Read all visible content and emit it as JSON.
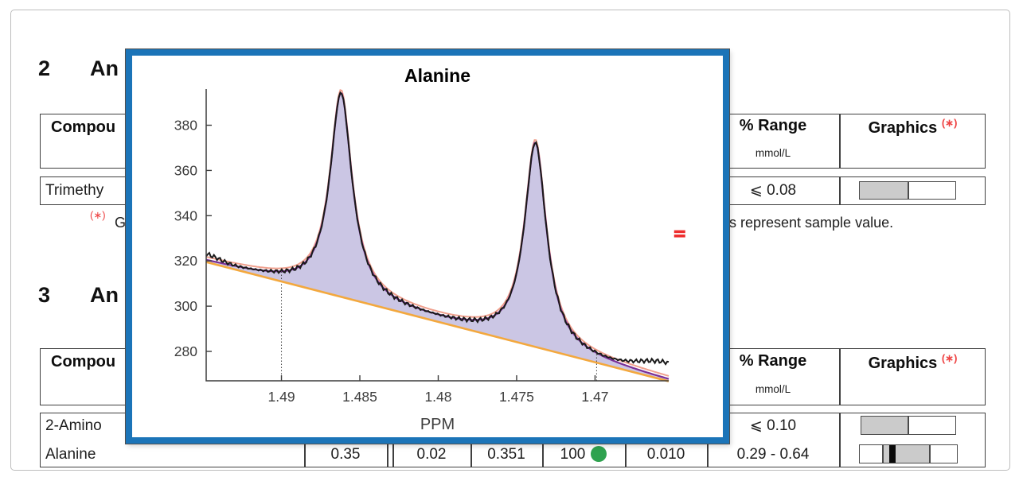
{
  "page": {
    "border_color": "#bdbdbd"
  },
  "sections": [
    {
      "number": "2",
      "title_fragment": "An"
    },
    {
      "number": "3",
      "title_fragment": "An"
    }
  ],
  "tables": [
    {
      "header": {
        "compound_label_fragment": "Compou",
        "range_label": "% Range",
        "range_unit": "mmol/L",
        "graphics_label": "Graphics",
        "graphics_marker": "(∗)"
      },
      "rows": [
        {
          "compound_fragment": "Trimethy",
          "range": "⩽ 0.08",
          "bar": {
            "gray_start": 0,
            "gray_end": 51,
            "marker": null
          }
        }
      ]
    },
    {
      "header": {
        "compound_label_fragment": "Compou",
        "range_label": "% Range",
        "range_unit": "mmol/L",
        "graphics_label": "Graphics",
        "graphics_marker": "(∗)"
      },
      "rows": [
        {
          "compound_fragment": "2-Amino",
          "range": "⩽ 0.10",
          "bar": {
            "gray_start": 0,
            "gray_end": 50,
            "marker": null
          }
        },
        {
          "compound_fragment": "Alanine",
          "conc": "0.35",
          "lod": "0.02",
          "raw": "0.351",
          "conf": "100",
          "conf_indicator_color": "#2fa24f",
          "err": "0.010",
          "range": "0.29 - 0.64",
          "bar": {
            "gray_start": 24,
            "gray_end": 72,
            "marker": 30
          }
        }
      ]
    }
  ],
  "footnote": {
    "marker": "(∗)",
    "left_fragment": "G",
    "right_fragment": "s represent sample value."
  },
  "popup": {
    "border_color": "#1b74b8",
    "chart_data": {
      "type": "line",
      "title": "Alanine",
      "xlabel": "PPM",
      "x_axis_reversed": true,
      "x_range": [
        1.4653,
        1.4948
      ],
      "x_ticks": [
        1.49,
        1.485,
        1.48,
        1.475,
        1.47
      ],
      "y_range": [
        267,
        396
      ],
      "y_ticks": [
        280,
        300,
        320,
        340,
        360,
        380
      ],
      "baseline": {
        "x": [
          1.4948,
          1.4653
        ],
        "y": [
          319.5,
          266.8
        ],
        "color": "#f3a83e"
      },
      "peaks": [
        {
          "center_ppm": 1.4862,
          "apex_value": 394,
          "hwhm_ppm": 0.00085
        },
        {
          "center_ppm": 1.4738,
          "apex_value": 372,
          "hwhm_ppm": 0.00085
        }
      ],
      "integration_bounds_ppm": [
        1.49,
        1.4699
      ],
      "raw_edge_offsets": {
        "left": 2.5,
        "right": 7
      },
      "error_marker": {
        "ppm": 1.4646,
        "value": 332,
        "color": "#ee2e2e"
      },
      "series_colors": {
        "raw": "#1a1a1a",
        "fit": "#7b3097",
        "component": "#f0a08e",
        "fill": "#cbc6e4"
      },
      "grid": false,
      "legend": false
    }
  }
}
